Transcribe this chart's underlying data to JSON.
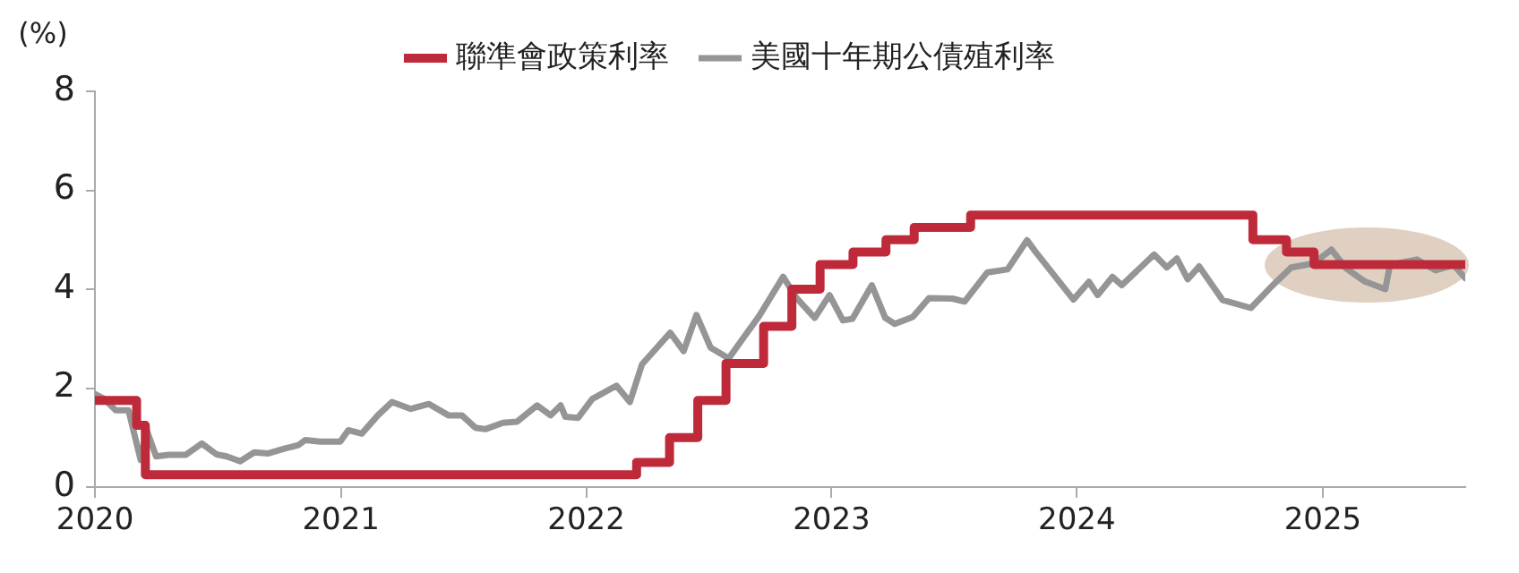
{
  "chart_data": {
    "type": "line",
    "ylabel": "(%)",
    "xlim": [
      "2020-01-01",
      "2025-08-01"
    ],
    "xticks": [
      "2020",
      "2021",
      "2022",
      "2023",
      "2024",
      "2025"
    ],
    "ylim": [
      0,
      8
    ],
    "yticks": [
      0,
      2,
      4,
      6,
      8
    ],
    "grid": false,
    "legend": "top",
    "marker": "none",
    "series": [
      {
        "name": "聯準會政策利率",
        "type": "step",
        "color": "#be2a3a",
        "x": [
          "2020-01-01",
          "2020-03-03",
          "2020-03-16",
          "2022-03-17",
          "2022-05-05",
          "2022-06-16",
          "2022-07-28",
          "2022-09-22",
          "2022-11-03",
          "2022-12-15",
          "2023-02-02",
          "2023-03-23",
          "2023-05-04",
          "2023-07-27",
          "2024-09-19",
          "2024-11-08",
          "2024-12-19",
          "2025-08-01"
        ],
        "values": [
          1.75,
          1.25,
          0.25,
          0.5,
          1.0,
          1.75,
          2.5,
          3.25,
          4.0,
          4.5,
          4.75,
          5.0,
          5.25,
          5.5,
          5.0,
          4.75,
          4.5,
          4.5
        ]
      },
      {
        "name": "美國十年期公債殖利率",
        "type": "line",
        "color": "#959595",
        "x": [
          "2020-01-01",
          "2020-01-15",
          "2020-02-01",
          "2020-02-20",
          "2020-03-09",
          "2020-03-18",
          "2020-04-01",
          "2020-04-20",
          "2020-05-15",
          "2020-06-08",
          "2020-06-30",
          "2020-07-15",
          "2020-08-04",
          "2020-08-25",
          "2020-09-15",
          "2020-10-10",
          "2020-10-30",
          "2020-11-09",
          "2020-12-01",
          "2020-12-31",
          "2021-01-12",
          "2021-02-01",
          "2021-02-25",
          "2021-03-18",
          "2021-04-15",
          "2021-05-12",
          "2021-06-10",
          "2021-06-30",
          "2021-07-20",
          "2021-08-04",
          "2021-08-30",
          "2021-09-20",
          "2021-10-20",
          "2021-11-09",
          "2021-11-24",
          "2021-12-01",
          "2021-12-20",
          "2022-01-10",
          "2022-02-15",
          "2022-03-07",
          "2022-03-25",
          "2022-05-06",
          "2022-05-26",
          "2022-06-14",
          "2022-07-05",
          "2022-08-01",
          "2022-08-22",
          "2022-09-15",
          "2022-10-21",
          "2022-11-10",
          "2022-12-07",
          "2022-12-29",
          "2023-01-18",
          "2023-02-01",
          "2023-03-02",
          "2023-03-22",
          "2023-04-05",
          "2023-05-02",
          "2023-05-26",
          "2023-06-30",
          "2023-07-18",
          "2023-08-21",
          "2023-09-20",
          "2023-10-19",
          "2023-11-01",
          "2023-12-27",
          "2024-01-19",
          "2024-02-01",
          "2024-02-23",
          "2024-03-08",
          "2024-04-25",
          "2024-05-14",
          "2024-05-29",
          "2024-06-14",
          "2024-07-01",
          "2024-08-05",
          "2024-09-16",
          "2024-10-15",
          "2024-11-15",
          "2024-12-18",
          "2025-01-14",
          "2025-02-05",
          "2025-03-04",
          "2025-04-04",
          "2025-04-11",
          "2025-05-21",
          "2025-06-18",
          "2025-07-15",
          "2025-08-01"
        ],
        "values": [
          1.88,
          1.78,
          1.55,
          1.55,
          0.55,
          1.15,
          0.62,
          0.65,
          0.65,
          0.88,
          0.66,
          0.62,
          0.52,
          0.7,
          0.68,
          0.78,
          0.85,
          0.95,
          0.92,
          0.92,
          1.15,
          1.08,
          1.45,
          1.72,
          1.58,
          1.68,
          1.45,
          1.45,
          1.2,
          1.17,
          1.3,
          1.32,
          1.65,
          1.45,
          1.65,
          1.42,
          1.4,
          1.78,
          2.05,
          1.72,
          2.48,
          3.12,
          2.75,
          3.48,
          2.82,
          2.6,
          3.0,
          3.45,
          4.25,
          3.82,
          3.42,
          3.88,
          3.37,
          3.4,
          4.08,
          3.42,
          3.3,
          3.44,
          3.82,
          3.81,
          3.75,
          4.34,
          4.4,
          4.99,
          4.75,
          3.79,
          4.15,
          3.88,
          4.25,
          4.08,
          4.7,
          4.44,
          4.62,
          4.2,
          4.46,
          3.78,
          3.62,
          4.03,
          4.44,
          4.52,
          4.8,
          4.42,
          4.16,
          4.0,
          4.49,
          4.6,
          4.38,
          4.49,
          4.22
        ]
      }
    ]
  }
}
